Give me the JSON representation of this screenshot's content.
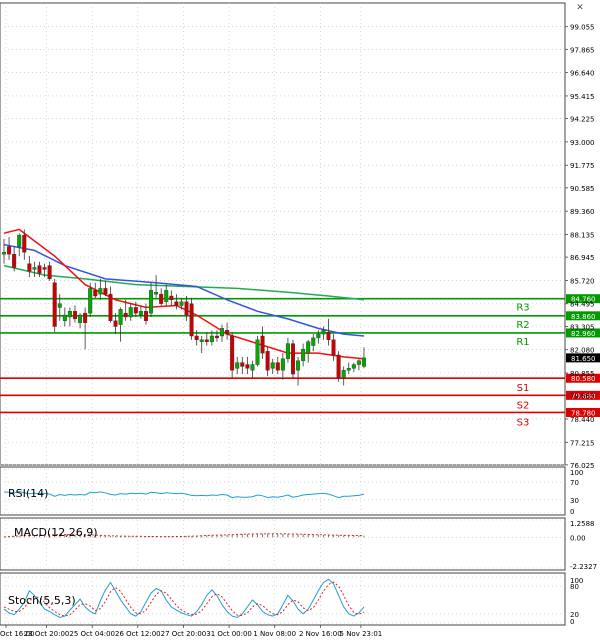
{
  "colors": {
    "bull": "#00aa00",
    "bear": "#cc0000",
    "ma_fast": "#ee1111",
    "ma_mid": "#3355dd",
    "ma_slow": "#22aa55",
    "resistance": "#009900",
    "support": "#dd0000",
    "osc_line": "#1ea0d2",
    "signal_line": "#dd2222",
    "grid": "#bbbbbb",
    "frame": "#444444",
    "current_price": "#000000"
  },
  "chart_data": [
    {
      "type": "candlestick",
      "title": "",
      "ylim": [
        76.02,
        100.3
      ],
      "y_ticks": [
        "99.055",
        "97.865",
        "96.640",
        "95.415",
        "94.225",
        "93.000",
        "91.775",
        "90.585",
        "89.360",
        "88.135",
        "86.945",
        "85.720",
        "84.495",
        "83.305",
        "82.080",
        "80.855",
        "79.665",
        "78.440",
        "77.215",
        "76.025"
      ],
      "x_ticks": [
        "Oct 16:00",
        "23 Oct 20:00",
        "25 Oct 04:00",
        "26 Oct 12:00",
        "27 Oct 20:00",
        "31 Oct 00:00",
        "1 Nov 08:00",
        "2 Nov 16:00",
        "5 Nov 23:01"
      ],
      "current_price": {
        "label": "81.650",
        "value": 81.65
      },
      "levels": [
        {
          "name": "R3",
          "value": 84.76,
          "label": "84.760",
          "kind": "resistance"
        },
        {
          "name": "R2",
          "value": 83.86,
          "label": "83.860",
          "kind": "resistance"
        },
        {
          "name": "R1",
          "value": 82.96,
          "label": "82.960",
          "kind": "resistance"
        },
        {
          "name": "S1",
          "value": 80.58,
          "label": "80.580",
          "kind": "support"
        },
        {
          "name": "S2",
          "value": 79.68,
          "label": "79.680",
          "kind": "support"
        },
        {
          "name": "S3",
          "value": 78.78,
          "label": "78.780",
          "kind": "support"
        }
      ],
      "candles": [
        [
          87.1,
          87.9,
          86.6,
          87.2
        ],
        [
          87.5,
          88.0,
          86.8,
          87.1
        ],
        [
          87.1,
          87.5,
          86.2,
          86.4
        ],
        [
          87.5,
          88.2,
          87.0,
          88.1
        ],
        [
          88.1,
          88.4,
          86.8,
          87.2
        ],
        [
          86.6,
          87.0,
          85.9,
          86.2
        ],
        [
          86.3,
          86.7,
          85.9,
          86.4
        ],
        [
          86.5,
          86.7,
          85.9,
          86.1
        ],
        [
          86.4,
          86.6,
          85.9,
          86.3
        ],
        [
          86.5,
          86.7,
          85.7,
          85.8
        ],
        [
          85.6,
          85.8,
          83.0,
          83.3
        ],
        [
          84.3,
          85.0,
          83.6,
          84.5
        ],
        [
          83.6,
          84.3,
          83.3,
          83.9
        ],
        [
          83.8,
          84.3,
          83.3,
          84.1
        ],
        [
          84.1,
          84.4,
          83.5,
          83.7
        ],
        [
          83.5,
          84.0,
          83.2,
          83.9
        ],
        [
          84.0,
          84.3,
          82.1,
          83.5
        ],
        [
          84.0,
          85.6,
          83.8,
          85.3
        ],
        [
          85.2,
          85.6,
          84.8,
          84.9
        ],
        [
          85.0,
          85.8,
          84.7,
          85.3
        ],
        [
          85.3,
          85.7,
          84.9,
          85.0
        ],
        [
          85.0,
          85.4,
          83.5,
          83.6
        ],
        [
          83.6,
          84.0,
          82.9,
          83.3
        ],
        [
          83.4,
          84.3,
          82.5,
          84.2
        ],
        [
          84.0,
          84.7,
          83.6,
          83.8
        ],
        [
          83.8,
          84.5,
          83.6,
          84.3
        ],
        [
          84.3,
          84.6,
          83.8,
          84.0
        ],
        [
          83.9,
          84.4,
          83.7,
          84.1
        ],
        [
          84.1,
          84.5,
          83.4,
          83.6
        ],
        [
          84.0,
          85.6,
          83.8,
          85.2
        ],
        [
          85.0,
          86.0,
          84.8,
          85.1
        ],
        [
          85.0,
          85.3,
          84.4,
          84.5
        ],
        [
          84.6,
          85.5,
          84.4,
          85.2
        ],
        [
          84.9,
          85.2,
          84.4,
          84.7
        ],
        [
          84.6,
          85.0,
          84.2,
          84.4
        ],
        [
          84.4,
          84.8,
          84.2,
          84.6
        ],
        [
          84.6,
          84.9,
          83.6,
          83.9
        ],
        [
          84.5,
          84.8,
          82.6,
          82.8
        ],
        [
          82.8,
          83.1,
          82.3,
          82.6
        ],
        [
          82.5,
          82.8,
          81.9,
          82.6
        ],
        [
          82.6,
          83.0,
          82.3,
          82.5
        ],
        [
          82.5,
          83.1,
          82.3,
          82.8
        ],
        [
          82.8,
          83.1,
          82.5,
          82.7
        ],
        [
          82.8,
          83.4,
          82.5,
          83.2
        ],
        [
          83.1,
          83.5,
          82.6,
          82.9
        ],
        [
          82.8,
          83.0,
          80.6,
          81.0
        ],
        [
          81.1,
          81.7,
          80.8,
          81.4
        ],
        [
          81.4,
          81.7,
          80.8,
          81.2
        ],
        [
          81.3,
          81.7,
          80.8,
          81.1
        ],
        [
          81.0,
          81.5,
          80.6,
          81.3
        ],
        [
          81.3,
          82.8,
          81.2,
          82.6
        ],
        [
          82.8,
          83.3,
          81.6,
          81.9
        ],
        [
          82.0,
          82.2,
          80.7,
          81.0
        ],
        [
          81.1,
          81.6,
          80.8,
          81.4
        ],
        [
          81.4,
          81.7,
          80.8,
          81.0
        ],
        [
          81.0,
          81.9,
          80.5,
          81.6
        ],
        [
          81.6,
          82.7,
          81.4,
          82.4
        ],
        [
          82.4,
          82.6,
          80.6,
          80.8
        ],
        [
          81.0,
          81.7,
          80.2,
          81.5
        ],
        [
          81.5,
          82.4,
          81.2,
          82.1
        ],
        [
          81.9,
          82.6,
          81.4,
          82.5
        ],
        [
          82.3,
          82.9,
          82.0,
          82.7
        ],
        [
          82.7,
          83.1,
          82.4,
          82.9
        ],
        [
          82.9,
          83.3,
          82.6,
          83.1
        ],
        [
          83.0,
          83.7,
          82.3,
          82.6
        ],
        [
          82.6,
          82.9,
          81.5,
          81.8
        ],
        [
          81.8,
          82.0,
          80.4,
          80.6
        ],
        [
          80.6,
          81.2,
          80.2,
          81.0
        ],
        [
          81.0,
          81.4,
          80.8,
          81.1
        ],
        [
          81.1,
          81.4,
          80.9,
          81.3
        ],
        [
          81.3,
          81.6,
          81.0,
          81.5
        ],
        [
          81.2,
          82.2,
          81.1,
          81.65
        ]
      ],
      "ma_fast": [
        [
          0,
          88.2
        ],
        [
          3,
          88.4
        ],
        [
          6,
          87.8
        ],
        [
          10,
          87.0
        ],
        [
          16,
          85.5
        ],
        [
          22,
          84.7
        ],
        [
          28,
          84.3
        ],
        [
          34,
          84.4
        ],
        [
          38,
          83.9
        ],
        [
          44,
          82.9
        ],
        [
          50,
          82.4
        ],
        [
          56,
          81.9
        ],
        [
          62,
          81.9
        ],
        [
          67,
          81.7
        ],
        [
          71,
          81.6
        ]
      ],
      "ma_mid": [
        [
          0,
          87.6
        ],
        [
          6,
          87.3
        ],
        [
          12,
          86.5
        ],
        [
          20,
          85.8
        ],
        [
          30,
          85.6
        ],
        [
          38,
          85.4
        ],
        [
          44,
          84.7
        ],
        [
          50,
          84.1
        ],
        [
          56,
          83.7
        ],
        [
          62,
          83.2
        ],
        [
          67,
          82.9
        ],
        [
          71,
          82.8
        ]
      ],
      "ma_slow": [
        [
          0,
          86.5
        ],
        [
          8,
          86.0
        ],
        [
          16,
          85.8
        ],
        [
          26,
          85.5
        ],
        [
          36,
          85.4
        ],
        [
          46,
          85.3
        ],
        [
          56,
          85.1
        ],
        [
          64,
          84.9
        ],
        [
          71,
          84.7
        ]
      ]
    },
    {
      "type": "line",
      "title": "RSI(14)",
      "ylim": [
        0,
        100
      ],
      "y_ticks": [
        "100",
        "70",
        "30",
        "0"
      ],
      "series": [
        {
          "values": [
            48,
            47,
            45,
            49,
            46,
            44,
            45,
            44,
            45,
            43,
            38,
            42,
            40,
            42,
            41,
            42,
            41,
            47,
            46,
            48,
            46,
            42,
            41,
            44,
            43,
            45,
            44,
            45,
            43,
            47,
            46,
            44,
            46,
            45,
            44,
            45,
            43,
            40,
            39,
            40,
            39,
            41,
            40,
            42,
            41,
            35,
            37,
            36,
            36,
            37,
            41,
            39,
            35,
            37,
            36,
            38,
            41,
            36,
            38,
            41,
            42,
            43,
            44,
            45,
            43,
            39,
            35,
            38,
            38,
            39,
            40,
            43
          ]
        }
      ]
    },
    {
      "type": "bar",
      "title": "MACD(12,26,9)",
      "ylim": [
        -2.2327,
        1.2588
      ],
      "y_ticks": [
        "1.2588",
        "0.00",
        "-2.2327"
      ],
      "series": [
        {
          "values": [
            0.0,
            0.05,
            0.08,
            0.1,
            0.12,
            0.14,
            0.15,
            0.16,
            0.17,
            0.18,
            0.2,
            0.2,
            0.21,
            0.2,
            0.2,
            0.19,
            0.2,
            0.18,
            0.16,
            0.14,
            0.12,
            0.1,
            0.09,
            0.08,
            0.08,
            0.07,
            0.07,
            0.06,
            0.06,
            0.06,
            0.05,
            0.05,
            0.05,
            0.05,
            0.06,
            0.06,
            0.07,
            0.08,
            0.1,
            0.12,
            0.14,
            0.15,
            0.16,
            0.17,
            0.18,
            0.2,
            0.22,
            0.23,
            0.24,
            0.25,
            0.25,
            0.25,
            0.26,
            0.26,
            0.26,
            0.25,
            0.24,
            0.24,
            0.23,
            0.22,
            0.21,
            0.2,
            0.19,
            0.17,
            0.16,
            0.15,
            0.15,
            0.14,
            0.13,
            0.13,
            0.12,
            0.12
          ]
        },
        {
          "values": [
            0.02,
            0.05,
            0.08,
            0.1,
            0.12,
            0.14,
            0.15,
            0.16,
            0.17,
            0.18,
            0.19,
            0.2,
            0.2,
            0.2,
            0.2,
            0.2,
            0.19,
            0.18,
            0.16,
            0.14,
            0.12,
            0.11,
            0.1,
            0.09,
            0.08,
            0.08,
            0.07,
            0.07,
            0.06,
            0.06,
            0.06,
            0.05,
            0.05,
            0.05,
            0.06,
            0.06,
            0.07,
            0.08,
            0.09,
            0.11,
            0.13,
            0.15,
            0.16,
            0.17,
            0.18,
            0.19,
            0.21,
            0.22,
            0.23,
            0.24,
            0.25,
            0.25,
            0.25,
            0.26,
            0.26,
            0.25,
            0.25,
            0.24,
            0.23,
            0.22,
            0.21,
            0.2,
            0.19,
            0.18,
            0.17,
            0.16,
            0.15,
            0.14,
            0.14,
            0.13,
            0.13,
            0.12
          ]
        }
      ]
    },
    {
      "type": "line",
      "title": "Stoch(5,5,3)",
      "ylim": [
        0,
        100
      ],
      "y_ticks": [
        "100",
        "80",
        "20",
        "0"
      ],
      "series": [
        {
          "values": [
            30,
            22,
            18,
            30,
            45,
            70,
            60,
            45,
            30,
            25,
            18,
            12,
            15,
            28,
            40,
            52,
            35,
            25,
            20,
            48,
            72,
            88,
            70,
            50,
            35,
            20,
            15,
            25,
            45,
            65,
            75,
            70,
            50,
            35,
            28,
            22,
            18,
            15,
            25,
            40,
            60,
            72,
            60,
            40,
            25,
            15,
            12,
            20,
            35,
            50,
            40,
            25,
            18,
            15,
            20,
            40,
            60,
            48,
            30,
            20,
            30,
            50,
            70,
            88,
            95,
            85,
            60,
            35,
            20,
            15,
            22,
            35
          ]
        },
        {
          "values": [
            35,
            30,
            25,
            25,
            33,
            48,
            58,
            55,
            45,
            33,
            25,
            18,
            15,
            18,
            28,
            40,
            42,
            37,
            27,
            31,
            47,
            68,
            77,
            69,
            51,
            34,
            22,
            20,
            28,
            45,
            62,
            70,
            65,
            52,
            38,
            28,
            22,
            18,
            19,
            27,
            42,
            57,
            64,
            57,
            42,
            27,
            17,
            16,
            22,
            35,
            42,
            38,
            28,
            20,
            18,
            25,
            40,
            50,
            46,
            33,
            27,
            33,
            50,
            69,
            84,
            89,
            80,
            60,
            38,
            23,
            19,
            24
          ]
        }
      ]
    }
  ]
}
